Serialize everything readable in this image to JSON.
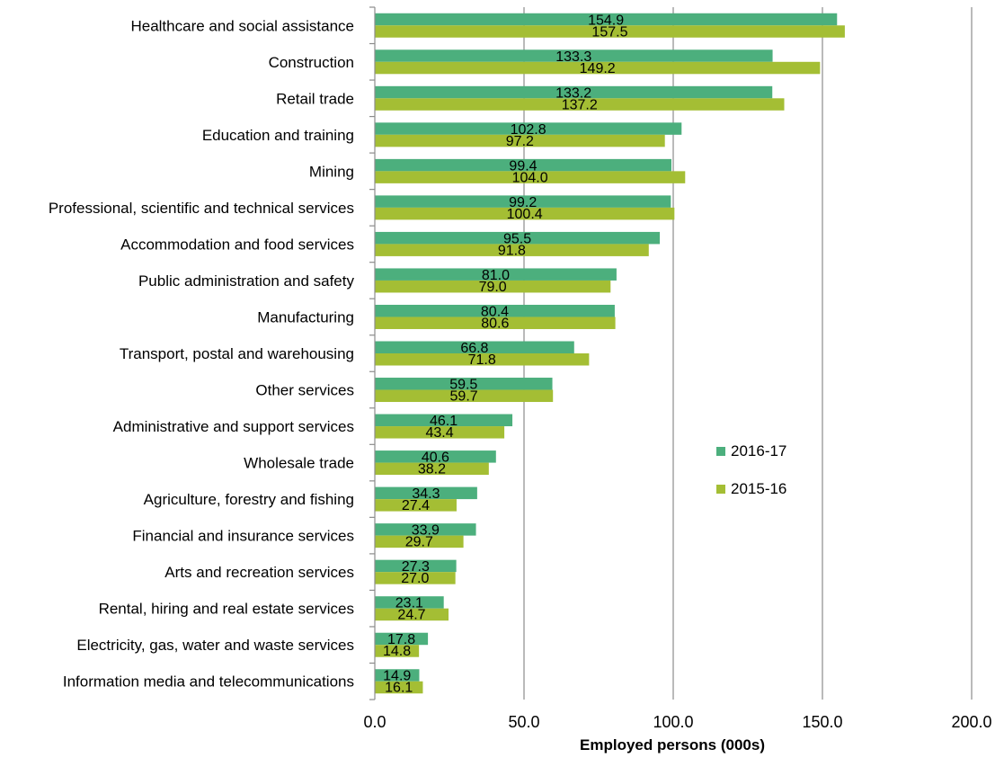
{
  "chart_data": {
    "type": "bar",
    "orientation": "horizontal",
    "categories": [
      "Healthcare and social assistance",
      "Construction",
      "Retail trade",
      "Education and training",
      "Mining",
      "Professional, scientific and technical services",
      "Accommodation and food services",
      "Public administration and safety",
      "Manufacturing",
      "Transport, postal and warehousing",
      "Other services",
      "Administrative and support services",
      "Wholesale trade",
      "Agriculture, forestry and fishing",
      "Financial and insurance services",
      "Arts and recreation services",
      "Rental, hiring and real estate services",
      "Electricity, gas, water and waste services",
      "Information media and telecommunications"
    ],
    "series": [
      {
        "name": "2016-17",
        "color": "#4caf7d",
        "values": [
          154.9,
          133.3,
          133.2,
          102.8,
          99.4,
          99.2,
          95.5,
          81.0,
          80.4,
          66.8,
          59.5,
          46.1,
          40.6,
          34.3,
          33.9,
          27.3,
          23.1,
          17.8,
          14.9
        ],
        "labels": [
          "154.9",
          "133.3",
          "133.2",
          "102.8",
          "99.4",
          "99.2",
          "95.5",
          "81.0",
          "80.4",
          "66.8",
          "59.5",
          "46.1",
          "40.6",
          "34.3",
          "33.9",
          "27.3",
          "23.1",
          "17.8",
          "14.9"
        ]
      },
      {
        "name": "2015-16",
        "color": "#a4be34",
        "values": [
          157.5,
          149.2,
          137.2,
          97.2,
          104.0,
          100.4,
          91.8,
          79.0,
          80.6,
          71.8,
          59.7,
          43.4,
          38.2,
          27.4,
          29.7,
          27.0,
          24.7,
          14.8,
          16.1
        ],
        "labels": [
          "157.5",
          "149.2",
          "137.2",
          "97.2",
          "104.0",
          "100.4",
          "91.8",
          "79.0",
          "80.6",
          "71.8",
          "59.7",
          "43.4",
          "38.2",
          "27.4",
          "29.7",
          "27.0",
          "24.7",
          "14.8",
          "16.1"
        ]
      }
    ],
    "xlabel": "Employed persons (000s)",
    "ylabel": "",
    "xlim": [
      0,
      200
    ],
    "xticks": [
      0,
      50,
      100,
      150,
      200
    ],
    "xtick_labels": [
      "0.0",
      "50.0",
      "100.0",
      "150.0",
      "200.0"
    ],
    "grid": true,
    "legend": "right"
  }
}
